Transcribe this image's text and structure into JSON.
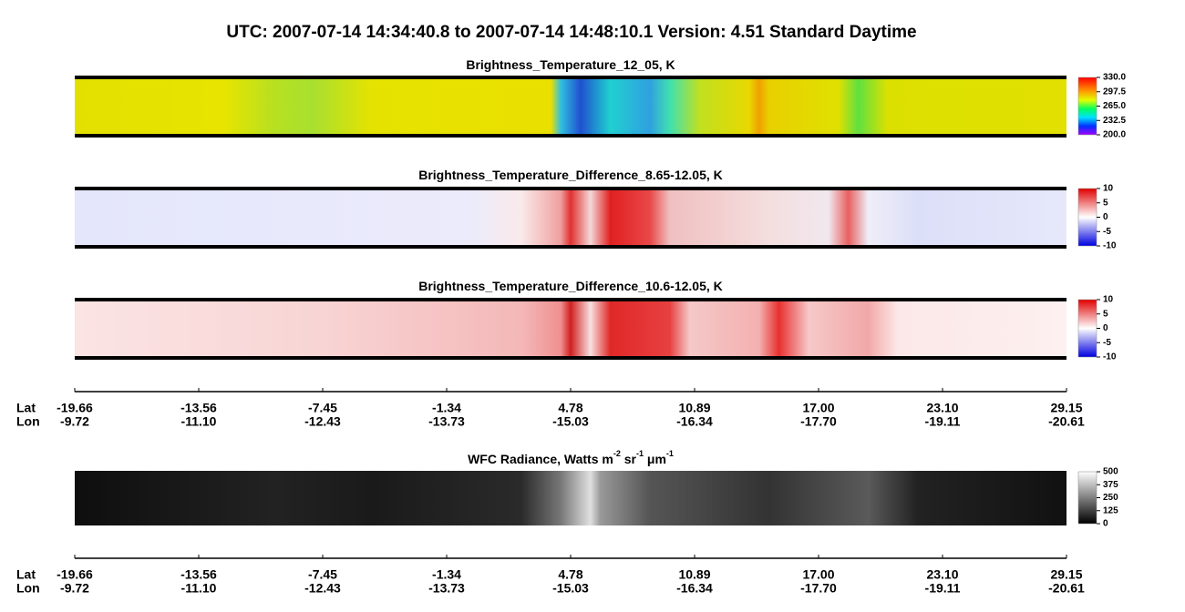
{
  "header": {
    "title": "UTC:  2007-07-14   14:34:40.8  to  2007-07-14   14:48:10.1    Version: 4.51  Standard Daytime"
  },
  "panels": [
    {
      "title_parts": [
        {
          "text": "Brightness_Temperature_12_05, K"
        }
      ],
      "colorbar": {
        "range": [
          200,
          330
        ],
        "ticks": [
          {
            "value": 330,
            "label": "330.0"
          },
          {
            "value": 297.5,
            "label": "297.5"
          },
          {
            "value": 265,
            "label": "265.0"
          },
          {
            "value": 232.5,
            "label": "232.5"
          },
          {
            "value": 200,
            "label": "200.0"
          }
        ]
      }
    },
    {
      "title_parts": [
        {
          "text": "Brightness_Temperature_Difference_8.65-12.05, K"
        }
      ],
      "colorbar": {
        "range": [
          -10,
          10
        ],
        "ticks": [
          10,
          5,
          0,
          -5,
          -10
        ]
      }
    },
    {
      "title_parts": [
        {
          "text": "Brightness_Temperature_Difference_10.6-12.05, K"
        }
      ],
      "colorbar": {
        "range": [
          -10,
          10
        ],
        "ticks": [
          10,
          5,
          0,
          -5,
          -10
        ]
      }
    },
    {
      "title_parts": [
        {
          "text": "WFC Radiance, Watts m"
        },
        {
          "sup": "-2"
        },
        {
          "text": " sr"
        },
        {
          "sup": "-1"
        },
        {
          "text": " μm"
        },
        {
          "sup": "-1"
        }
      ],
      "colorbar": {
        "range": [
          0,
          500
        ],
        "ticks": [
          500,
          375,
          250,
          125,
          0
        ]
      }
    }
  ],
  "axes": [
    {
      "lat_label": "Lat",
      "lon_label": "Lon",
      "lat": [
        "-19.66",
        "-13.56",
        "-7.45",
        "-1.34",
        "4.78",
        "10.89",
        "17.00",
        "23.10",
        "29.15"
      ],
      "lon": [
        "-9.72",
        "-11.10",
        "-12.43",
        "-13.73",
        "-15.03",
        "-16.34",
        "-17.70",
        "-19.11",
        "-20.61"
      ]
    },
    {
      "lat_label": "Lat",
      "lon_label": "Lon",
      "lat": [
        "-19.66",
        "-13.56",
        "-7.45",
        "-1.34",
        "4.78",
        "10.89",
        "17.00",
        "23.10",
        "29.15"
      ],
      "lon": [
        "-9.72",
        "-11.10",
        "-12.43",
        "-13.73",
        "-15.03",
        "-16.34",
        "-17.70",
        "-19.11",
        "-20.61"
      ]
    }
  ]
}
